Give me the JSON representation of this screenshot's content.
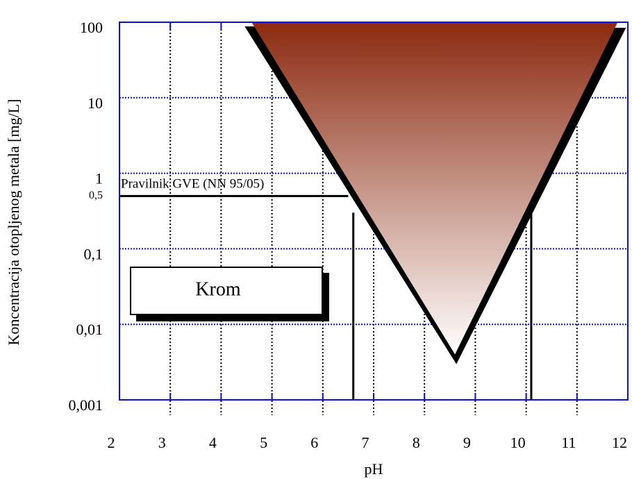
{
  "chart_data": {
    "type": "region",
    "xlabel": "pH",
    "ylabel": "Koncentracija otopljenog metala [mg/L]",
    "xlim": [
      2,
      12
    ],
    "xticks": [
      2,
      3,
      4,
      5,
      6,
      7,
      8,
      9,
      10,
      11,
      12
    ],
    "ylim": [
      0.001,
      100
    ],
    "ylog": true,
    "yticks": [
      100,
      10,
      1,
      {
        "value": 0.1,
        "label": "0,1"
      },
      {
        "value": 0.01,
        "label": "0,01"
      },
      {
        "value": 0.001,
        "label": "0,001"
      }
    ],
    "grid": true,
    "region": {
      "x": [
        4.6,
        8.6,
        11.8
      ],
      "y": [
        100,
        0.004,
        100
      ],
      "color_top": "#8b2a10",
      "color_bottom": "#ffffff"
    },
    "limit": {
      "value": 0.5,
      "label": "0,5",
      "text": "Pravilnik GVE (NN 95/05)",
      "x_end": 6.5
    },
    "limit_ph": [
      6.6,
      10.1
    ],
    "annotation": "Krom"
  }
}
